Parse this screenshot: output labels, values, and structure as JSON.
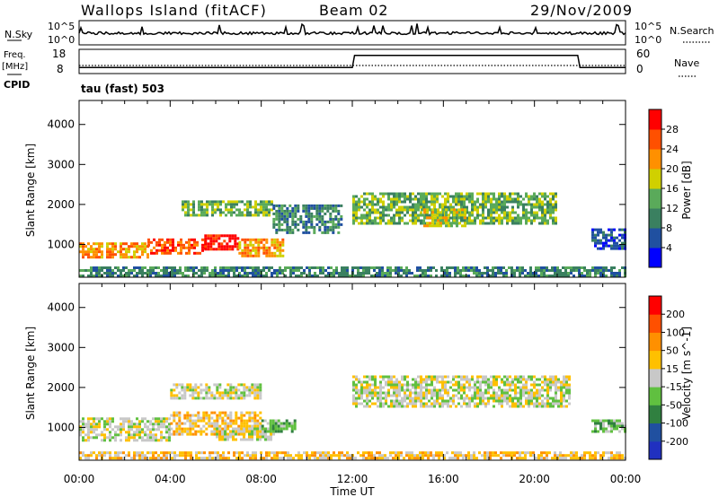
{
  "header": {
    "site": "Wallops Island (fitACF)",
    "beam": "Beam 02",
    "date": "29/Nov/2009"
  },
  "noise_panel": {
    "left_label": "N.Sky",
    "left_ticks": [
      "10^5",
      "10^0"
    ],
    "right_ticks": [
      "10^5",
      "10^0"
    ],
    "right_label": "N.Search"
  },
  "freq_panel": {
    "left_label_1": "Freq.",
    "left_label_2": "[MHz]",
    "left_ticks": [
      "18",
      "8"
    ],
    "right_ticks": [
      "60",
      "0"
    ],
    "right_label": "Nave",
    "cpid_label": "CPID",
    "cpid_value": "tau (fast) 503"
  },
  "axes": {
    "y_label": "Slant Range [km]",
    "y_ticks": [
      "4000",
      "3000",
      "2000",
      "1000"
    ],
    "x_label": "Time UT",
    "x_ticks": [
      "00:00",
      "04:00",
      "08:00",
      "12:00",
      "16:00",
      "20:00",
      "00:00"
    ]
  },
  "colorbars": {
    "power": {
      "label": "Power [dB]",
      "ticks": [
        "28",
        "24",
        "20",
        "16",
        "12",
        "8",
        "4"
      ],
      "colors": [
        "#0000ff",
        "#2050a0",
        "#3a8060",
        "#5aaa5a",
        "#d0d000",
        "#ff9000",
        "#ff5000",
        "#ff0000"
      ]
    },
    "velocity": {
      "label": "Velocity [m s^-1]",
      "ticks": [
        "200",
        "100",
        "50",
        "15",
        "-15",
        "-50",
        "-100",
        "-200"
      ],
      "colors": [
        "#2030c0",
        "#2050a0",
        "#308040",
        "#60c040",
        "#c8c8c8",
        "#ffc000",
        "#ff9000",
        "#ff5000",
        "#ff0000"
      ]
    }
  },
  "chart_data": [
    {
      "type": "heatmap",
      "name": "Power",
      "x_range_hours": [
        0,
        24
      ],
      "y_range_km": [
        180,
        4600
      ],
      "bands": [
        {
          "t0": 0.0,
          "t1": 3.0,
          "r0": 700,
          "r1": 1050,
          "level": 5
        },
        {
          "t0": 3.0,
          "t1": 5.5,
          "r0": 800,
          "r1": 1150,
          "level": 6
        },
        {
          "t0": 5.5,
          "t1": 7.0,
          "r0": 900,
          "r1": 1250,
          "level": 7
        },
        {
          "t0": 7.0,
          "t1": 9.0,
          "r0": 700,
          "r1": 1150,
          "level": 5
        },
        {
          "t0": 4.5,
          "t1": 8.5,
          "r0": 1700,
          "r1": 2100,
          "level": 3
        },
        {
          "t0": 8.5,
          "t1": 11.5,
          "r0": 1300,
          "r1": 2000,
          "level": 2
        },
        {
          "t0": 12.0,
          "t1": 21.0,
          "r0": 1550,
          "r1": 2300,
          "level": 3
        },
        {
          "t0": 15.0,
          "t1": 17.0,
          "r0": 1450,
          "r1": 1900,
          "level": 4
        },
        {
          "t0": 22.5,
          "t1": 24.0,
          "r0": 900,
          "r1": 1400,
          "level": 1
        },
        {
          "t0": 0.0,
          "t1": 24.0,
          "r0": 200,
          "r1": 450,
          "level": 2
        }
      ]
    },
    {
      "type": "heatmap",
      "name": "Velocity",
      "x_range_hours": [
        0,
        24
      ],
      "y_range_km": [
        180,
        4600
      ],
      "bands": [
        {
          "t0": 0.0,
          "t1": 4.0,
          "r0": 700,
          "r1": 1250,
          "level": 4
        },
        {
          "t0": 4.0,
          "t1": 8.0,
          "r0": 800,
          "r1": 1400,
          "level": 5
        },
        {
          "t0": 6.0,
          "t1": 8.5,
          "r0": 700,
          "r1": 1000,
          "level": 4
        },
        {
          "t0": 8.0,
          "t1": 9.5,
          "r0": 900,
          "r1": 1200,
          "level": 3
        },
        {
          "t0": 4.0,
          "t1": 8.0,
          "r0": 1700,
          "r1": 2100,
          "level": 4
        },
        {
          "t0": 12.0,
          "t1": 21.5,
          "r0": 1500,
          "r1": 2300,
          "level": 4
        },
        {
          "t0": 22.5,
          "t1": 24.0,
          "r0": 900,
          "r1": 1200,
          "level": 3
        },
        {
          "t0": 0.0,
          "t1": 24.0,
          "r0": 200,
          "r1": 400,
          "level": 5
        }
      ]
    },
    {
      "type": "line",
      "name": "Freq. [MHz]",
      "x": [
        0,
        0.1,
        12.0,
        12.1,
        21.9,
        22.0,
        24.0
      ],
      "y": [
        10.5,
        10.5,
        10.5,
        15.5,
        15.5,
        10.5,
        10.5
      ],
      "ylim": [
        8,
        18
      ]
    }
  ]
}
